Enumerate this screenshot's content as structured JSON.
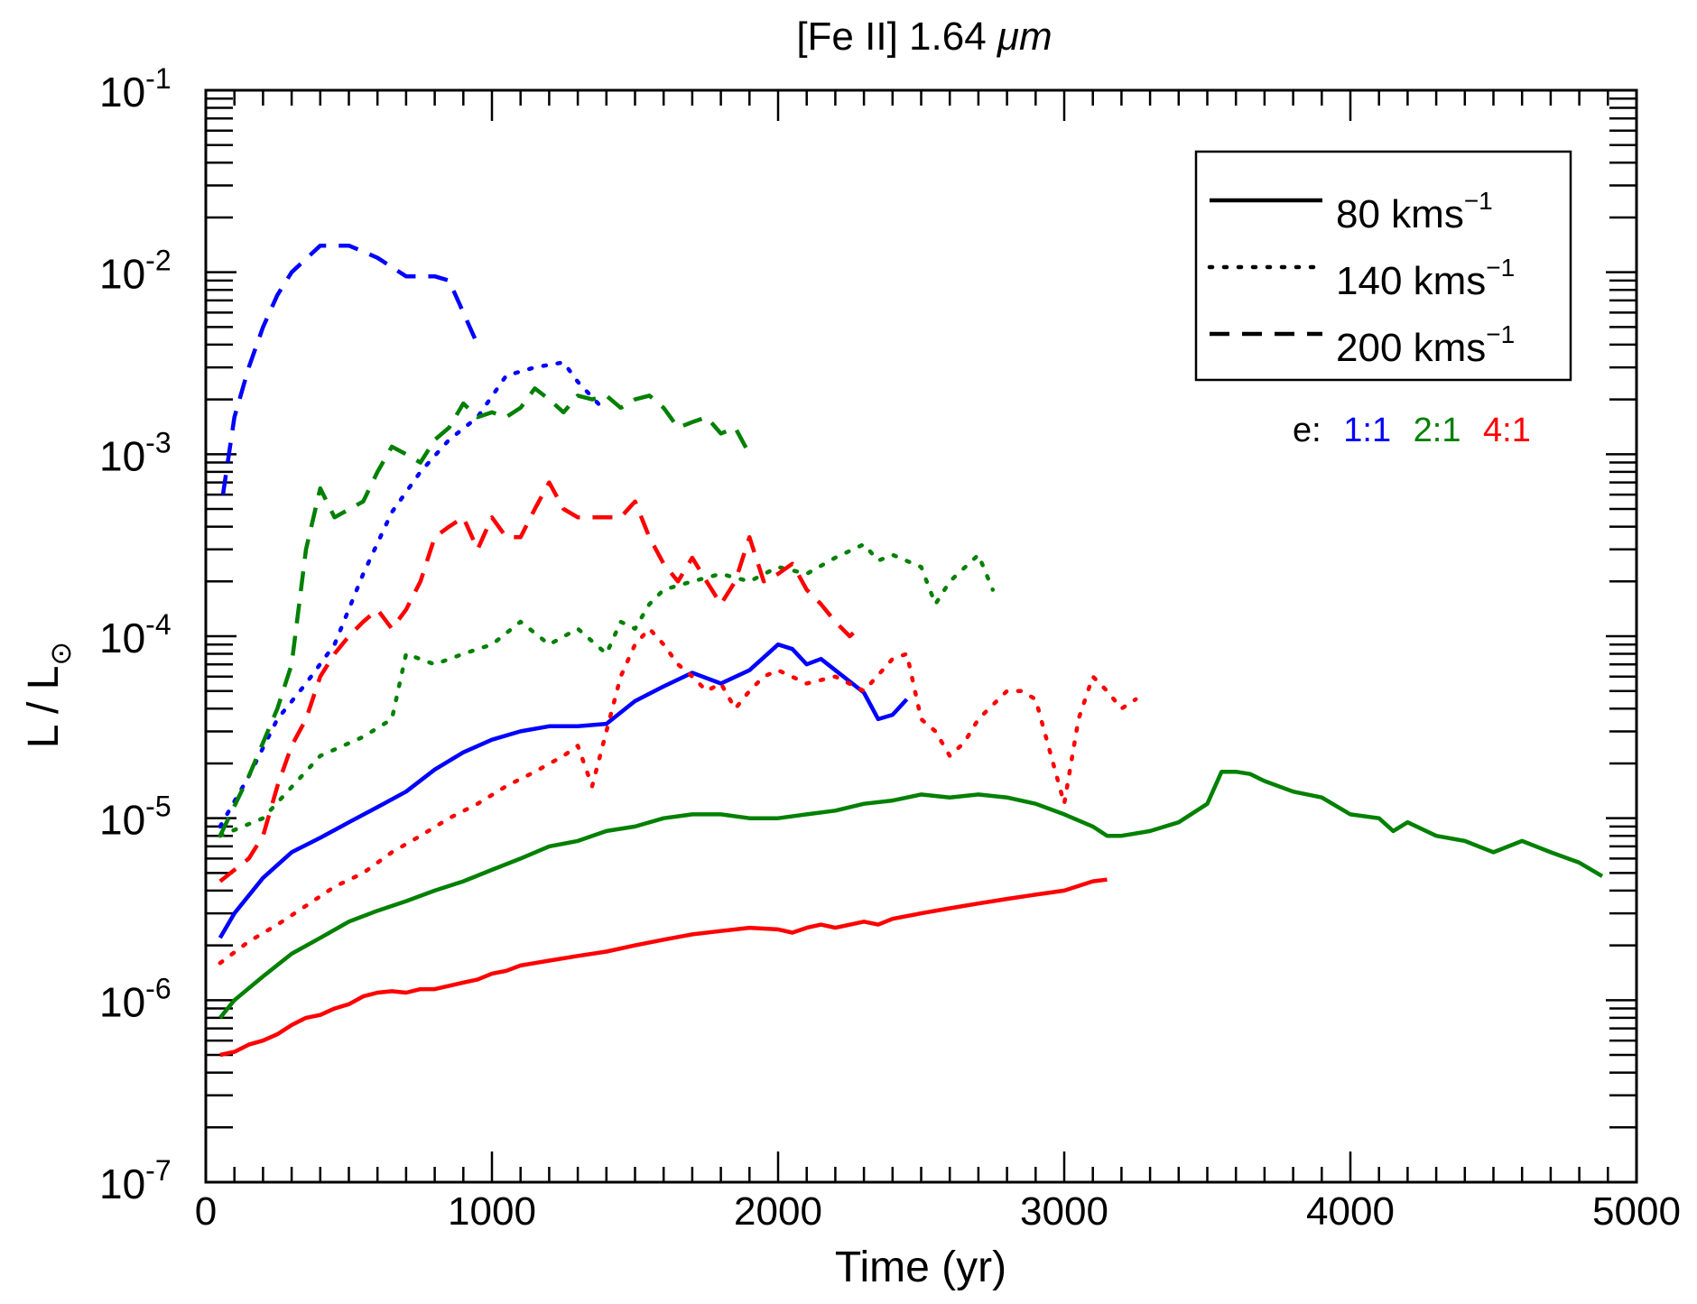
{
  "chart_data": {
    "type": "line",
    "title_prefix": "[Fe II] 1.64 ",
    "title_unit": "μm",
    "xlabel": "Time (yr)",
    "ylabel_main": "L / L",
    "ylabel_sub": "⊙",
    "xscale": "linear",
    "yscale": "log",
    "xlim": [
      0,
      5000
    ],
    "ylim": [
      1e-07,
      0.1
    ],
    "x_ticks": [
      {
        "value": 0,
        "label": "0"
      },
      {
        "value": 1000,
        "label": "1000"
      },
      {
        "value": 2000,
        "label": "2000"
      },
      {
        "value": 3000,
        "label": "3000"
      },
      {
        "value": 4000,
        "label": "4000"
      },
      {
        "value": 5000,
        "label": "5000"
      }
    ],
    "y_ticks": [
      {
        "value": 1e-07,
        "base": "10",
        "exp": "-7"
      },
      {
        "value": 1e-06,
        "base": "10",
        "exp": "-6"
      },
      {
        "value": 1e-05,
        "base": "10",
        "exp": "-5"
      },
      {
        "value": 0.0001,
        "base": "10",
        "exp": "-4"
      },
      {
        "value": 0.001,
        "base": "10",
        "exp": "-3"
      },
      {
        "value": 0.01,
        "base": "10",
        "exp": "-2"
      },
      {
        "value": 0.1,
        "base": "10",
        "exp": "-1"
      }
    ],
    "grid": false,
    "legend_position": "top-right",
    "legend": [
      {
        "style": "solid",
        "label": "80 kms",
        "sup": "−1"
      },
      {
        "style": "dotted",
        "label": "140 kms",
        "sup": "−1"
      },
      {
        "style": "dashed",
        "label": "200 kms",
        "sup": "−1"
      }
    ],
    "ratio_label": "e:",
    "ratios": [
      {
        "label": "1:1",
        "color": "#0000ff"
      },
      {
        "label": "2:1",
        "color": "#008000"
      },
      {
        "label": "4:1",
        "color": "#ff0000"
      }
    ],
    "series": [
      {
        "ratio": "1:1",
        "velocity": "80",
        "style": "solid",
        "color": "#0000ff",
        "x": [
          50,
          100,
          200,
          300,
          400,
          500,
          600,
          700,
          800,
          900,
          1000,
          1100,
          1200,
          1300,
          1400,
          1500,
          1600,
          1700,
          1800,
          1900,
          2000,
          2050,
          2100,
          2150,
          2200,
          2300,
          2350,
          2400,
          2450
        ],
        "y": [
          2.2e-06,
          3e-06,
          4.7e-06,
          6.5e-06,
          7.8e-06,
          9.5e-06,
          1.15e-05,
          1.4e-05,
          1.85e-05,
          2.3e-05,
          2.7e-05,
          3e-05,
          3.2e-05,
          3.2e-05,
          3.3e-05,
          4.4e-05,
          5.3e-05,
          6.3e-05,
          5.5e-05,
          6.5e-05,
          9e-05,
          8.5e-05,
          7e-05,
          7.5e-05,
          6.5e-05,
          4.9e-05,
          3.5e-05,
          3.7e-05,
          4.5e-05
        ]
      },
      {
        "ratio": "1:1",
        "velocity": "140",
        "style": "dotted",
        "color": "#0000ff",
        "x": [
          50,
          150,
          250,
          350,
          450,
          550,
          650,
          750,
          850,
          950,
          1050,
          1150,
          1250,
          1300,
          1400
        ],
        "y": [
          9e-06,
          1.7e-05,
          3.5e-05,
          5.5e-05,
          9e-05,
          0.00022,
          0.00048,
          0.0008,
          0.0012,
          0.0016,
          0.0027,
          0.003,
          0.0032,
          0.0025,
          0.0017
        ]
      },
      {
        "ratio": "1:1",
        "velocity": "200",
        "style": "dashed",
        "color": "#0000ff",
        "x": [
          60,
          100,
          150,
          200,
          250,
          300,
          400,
          500,
          550,
          600,
          700,
          800,
          850,
          900,
          950
        ],
        "y": [
          0.0006,
          0.0016,
          0.003,
          0.005,
          0.0075,
          0.01,
          0.014,
          0.014,
          0.013,
          0.012,
          0.0095,
          0.0095,
          0.009,
          0.006,
          0.004
        ]
      },
      {
        "ratio": "2:1",
        "velocity": "80",
        "style": "solid",
        "color": "#008000",
        "x": [
          50,
          100,
          200,
          300,
          400,
          500,
          600,
          700,
          800,
          900,
          1000,
          1100,
          1200,
          1300,
          1400,
          1500,
          1600,
          1700,
          1800,
          1900,
          2000,
          2100,
          2200,
          2300,
          2400,
          2500,
          2600,
          2700,
          2800,
          2900,
          3000,
          3100,
          3150,
          3200,
          3300,
          3400,
          3500,
          3550,
          3600,
          3650,
          3700,
          3800,
          3900,
          4000,
          4100,
          4150,
          4200,
          4300,
          4400,
          4500,
          4600,
          4700,
          4800,
          4880
        ],
        "y": [
          8e-07,
          1e-06,
          1.35e-06,
          1.8e-06,
          2.2e-06,
          2.7e-06,
          3.1e-06,
          3.5e-06,
          4e-06,
          4.5e-06,
          5.2e-06,
          6e-06,
          7e-06,
          7.5e-06,
          8.5e-06,
          9e-06,
          1e-05,
          1.05e-05,
          1.05e-05,
          1e-05,
          1e-05,
          1.05e-05,
          1.1e-05,
          1.2e-05,
          1.25e-05,
          1.35e-05,
          1.3e-05,
          1.35e-05,
          1.3e-05,
          1.2e-05,
          1.05e-05,
          9e-06,
          8e-06,
          8e-06,
          8.5e-06,
          9.5e-06,
          1.2e-05,
          1.8e-05,
          1.8e-05,
          1.75e-05,
          1.6e-05,
          1.4e-05,
          1.3e-05,
          1.05e-05,
          1e-05,
          8.5e-06,
          9.5e-06,
          8e-06,
          7.5e-06,
          6.5e-06,
          7.5e-06,
          6.5e-06,
          5.7e-06,
          4.8e-06
        ]
      },
      {
        "ratio": "2:1",
        "velocity": "140",
        "style": "dotted",
        "color": "#008000",
        "x": [
          50,
          200,
          400,
          550,
          650,
          700,
          800,
          900,
          1000,
          1100,
          1200,
          1300,
          1400,
          1450,
          1500,
          1550,
          1600,
          1700,
          1800,
          1900,
          2000,
          2100,
          2200,
          2300,
          2350,
          2400,
          2500,
          2550,
          2600,
          2700,
          2750
        ],
        "y": [
          8e-06,
          1e-05,
          2.2e-05,
          2.8e-05,
          3.5e-05,
          8e-05,
          7e-05,
          8e-05,
          9e-05,
          0.00012,
          9e-05,
          0.00011,
          8e-05,
          0.00012,
          0.00011,
          0.00015,
          0.00018,
          0.0002,
          0.00022,
          0.0002,
          0.00024,
          0.00022,
          0.00027,
          0.00032,
          0.00026,
          0.00028,
          0.00024,
          0.00015,
          0.0002,
          0.00028,
          0.00018
        ]
      },
      {
        "ratio": "2:1",
        "velocity": "200",
        "style": "dashed",
        "color": "#008000",
        "x": [
          50,
          150,
          250,
          300,
          350,
          400,
          450,
          550,
          600,
          650,
          700,
          750,
          800,
          850,
          900,
          950,
          1000,
          1050,
          1100,
          1150,
          1200,
          1250,
          1300,
          1350,
          1400,
          1450,
          1500,
          1550,
          1600,
          1650,
          1700,
          1750,
          1800,
          1850,
          1900
        ],
        "y": [
          8e-06,
          1.7e-05,
          4e-05,
          7e-05,
          0.0003,
          0.00065,
          0.00045,
          0.00055,
          0.0008,
          0.0011,
          0.001,
          0.0009,
          0.0012,
          0.0014,
          0.0019,
          0.0016,
          0.0017,
          0.0016,
          0.0018,
          0.0023,
          0.002,
          0.0017,
          0.0021,
          0.002,
          0.0021,
          0.0018,
          0.002,
          0.0021,
          0.0018,
          0.0014,
          0.0015,
          0.0016,
          0.0013,
          0.0014,
          0.001
        ]
      },
      {
        "ratio": "4:1",
        "velocity": "80",
        "style": "solid",
        "color": "#ff0000",
        "x": [
          50,
          100,
          150,
          200,
          250,
          300,
          350,
          400,
          450,
          500,
          550,
          600,
          650,
          700,
          750,
          800,
          850,
          900,
          950,
          1000,
          1050,
          1100,
          1150,
          1200,
          1300,
          1400,
          1500,
          1600,
          1700,
          1800,
          1900,
          2000,
          2050,
          2100,
          2150,
          2200,
          2300,
          2350,
          2400,
          2500,
          2600,
          2700,
          2800,
          2900,
          2950,
          3000,
          3100,
          3150
        ],
        "y": [
          5e-07,
          5.2e-07,
          5.7e-07,
          6e-07,
          6.5e-07,
          7.3e-07,
          8e-07,
          8.3e-07,
          9e-07,
          9.5e-07,
          1.05e-06,
          1.1e-06,
          1.12e-06,
          1.1e-06,
          1.15e-06,
          1.15e-06,
          1.2e-06,
          1.25e-06,
          1.3e-06,
          1.4e-06,
          1.45e-06,
          1.55e-06,
          1.6e-06,
          1.65e-06,
          1.75e-06,
          1.85e-06,
          2e-06,
          2.15e-06,
          2.3e-06,
          2.4e-06,
          2.5e-06,
          2.45e-06,
          2.35e-06,
          2.5e-06,
          2.6e-06,
          2.5e-06,
          2.7e-06,
          2.6e-06,
          2.8e-06,
          3e-06,
          3.2e-06,
          3.4e-06,
          3.6e-06,
          3.8e-06,
          3.9e-06,
          4e-06,
          4.5e-06,
          4.6e-06
        ]
      },
      {
        "ratio": "4:1",
        "velocity": "140",
        "style": "dotted",
        "color": "#ff0000",
        "x": [
          50,
          150,
          250,
          350,
          450,
          550,
          650,
          750,
          850,
          950,
          1050,
          1150,
          1250,
          1300,
          1350,
          1400,
          1450,
          1500,
          1550,
          1600,
          1650,
          1700,
          1750,
          1800,
          1850,
          1900,
          1950,
          2000,
          2100,
          2200,
          2300,
          2400,
          2450,
          2500,
          2550,
          2600,
          2650,
          2700,
          2800,
          2850,
          2900,
          3000,
          3050,
          3100,
          3150,
          3200,
          3250
        ],
        "y": [
          1.6e-06,
          2.1e-06,
          2.6e-06,
          3.3e-06,
          4.2e-06,
          5e-06,
          6.5e-06,
          8e-06,
          1e-05,
          1.2e-05,
          1.5e-05,
          1.8e-05,
          2.2e-05,
          2.5e-05,
          1.5e-05,
          3e-05,
          6e-05,
          9e-05,
          0.00011,
          9e-05,
          7e-05,
          6e-05,
          5e-05,
          5.5e-05,
          4e-05,
          5e-05,
          6e-05,
          6.5e-05,
          5.5e-05,
          6e-05,
          5e-05,
          7.5e-05,
          8e-05,
          3.5e-05,
          3e-05,
          2.2e-05,
          2.6e-05,
          3.5e-05,
          5e-05,
          5e-05,
          4.5e-05,
          1.2e-05,
          3.5e-05,
          6e-05,
          5e-05,
          4e-05,
          4.5e-05
        ]
      },
      {
        "ratio": "4:1",
        "velocity": "200",
        "style": "dashed",
        "color": "#ff0000",
        "x": [
          50,
          150,
          200,
          250,
          300,
          350,
          400,
          450,
          500,
          550,
          600,
          650,
          700,
          750,
          800,
          850,
          900,
          950,
          1000,
          1050,
          1100,
          1150,
          1200,
          1250,
          1300,
          1350,
          1400,
          1450,
          1500,
          1550,
          1600,
          1650,
          1700,
          1750,
          1800,
          1850,
          1900,
          1950,
          2000,
          2050,
          2100,
          2150,
          2200,
          2250,
          2280
        ],
        "y": [
          4.5e-06,
          6e-06,
          8e-06,
          1.5e-05,
          2.5e-05,
          3.5e-05,
          6e-05,
          8e-05,
          0.0001,
          0.00012,
          0.00014,
          0.00011,
          0.00014,
          0.0002,
          0.00035,
          0.0004,
          0.00045,
          0.0003,
          0.00045,
          0.00035,
          0.00035,
          0.0005,
          0.0007,
          0.0005,
          0.00045,
          0.00045,
          0.00045,
          0.00045,
          0.00055,
          0.00035,
          0.00025,
          0.0002,
          0.00027,
          0.0002,
          0.00015,
          0.0002,
          0.00035,
          0.0002,
          0.00022,
          0.00025,
          0.00018,
          0.00015,
          0.00012,
          0.0001,
          0.00011
        ]
      }
    ]
  }
}
